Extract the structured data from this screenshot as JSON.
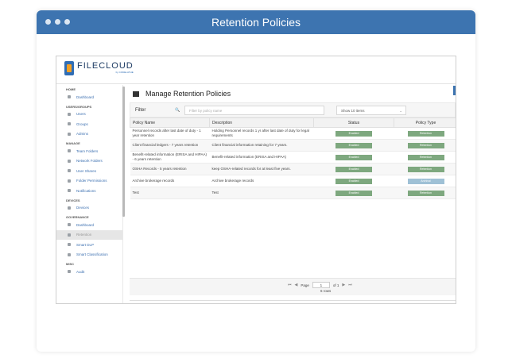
{
  "window": {
    "title": "Retention Policies"
  },
  "brand": {
    "logo_text": "FILECLOUD",
    "logo_sub": "by CODELATHE"
  },
  "sidebar": {
    "sections": [
      {
        "label": "HOME",
        "items": [
          {
            "label": "Dashboard",
            "icon": "home-icon"
          }
        ]
      },
      {
        "label": "USERS/GROUPS",
        "items": [
          {
            "label": "Users",
            "icon": "user-icon"
          },
          {
            "label": "Groups",
            "icon": "group-icon"
          },
          {
            "label": "Admins",
            "icon": "admin-icon"
          }
        ]
      },
      {
        "label": "MANAGE",
        "items": [
          {
            "label": "Team Folders",
            "icon": "folder-icon"
          },
          {
            "label": "Network Folders",
            "icon": "network-folder-icon"
          },
          {
            "label": "User Shares",
            "icon": "share-icon"
          },
          {
            "label": "Folder Permissions",
            "icon": "permissions-icon"
          },
          {
            "label": "Notifications",
            "icon": "bell-icon"
          }
        ]
      },
      {
        "label": "DEVICES",
        "items": [
          {
            "label": "Devices",
            "icon": "device-icon"
          }
        ]
      },
      {
        "label": "GOVERNANCE",
        "items": [
          {
            "label": "Dashboard",
            "icon": "governance-icon"
          },
          {
            "label": "Retention",
            "icon": "retention-icon",
            "active": true
          },
          {
            "label": "Smart DLP",
            "icon": "shield-icon"
          },
          {
            "label": "Smart Classification",
            "icon": "tag-icon"
          }
        ]
      },
      {
        "label": "MISC",
        "items": [
          {
            "label": "Audit",
            "icon": "audit-icon"
          }
        ]
      }
    ]
  },
  "main": {
    "title": "Manage Retention Policies",
    "filter_label": "Filter",
    "filter_placeholder": "Filter by policy name",
    "show_select": "Show 10 items",
    "columns": [
      "Policy Name",
      "Description",
      "Status",
      "Policy Type"
    ],
    "rows": [
      {
        "name": "Personnel records after last date of duty - 1 year retention",
        "description": "Holding Personnel records 1 yr after last date of duty for legal requirements",
        "status": "Enabled",
        "type": "Retention"
      },
      {
        "name": "Client financial ledgers - 7 years retention",
        "description": "Client financial information retaining for 7 years.",
        "status": "Enabled",
        "type": "Retention"
      },
      {
        "name": "Benefit-related information (ERISA and HIPAA) - 6 years retention",
        "description": "Benefit-related information (ERISA and HIPAA)",
        "status": "Enabled",
        "type": "Retention"
      },
      {
        "name": "OSHA Records - 5 years retention",
        "description": "keep OSHA-related records for at least five years.",
        "status": "Enabled",
        "type": "Retention"
      },
      {
        "name": "Archive brokerage records",
        "description": "Archive brokerage records",
        "status": "Enabled",
        "type": "Archival"
      },
      {
        "name": "Test",
        "description": "Test",
        "status": "Enabled",
        "type": "Retention"
      }
    ],
    "pager": {
      "page_label": "Page",
      "page_value": "1",
      "of_label": "of 1",
      "rows_label": "6 rows"
    }
  },
  "colors": {
    "header": "#3d74b0",
    "enabled": "#7ea87f",
    "archival": "#9fc1d6"
  }
}
